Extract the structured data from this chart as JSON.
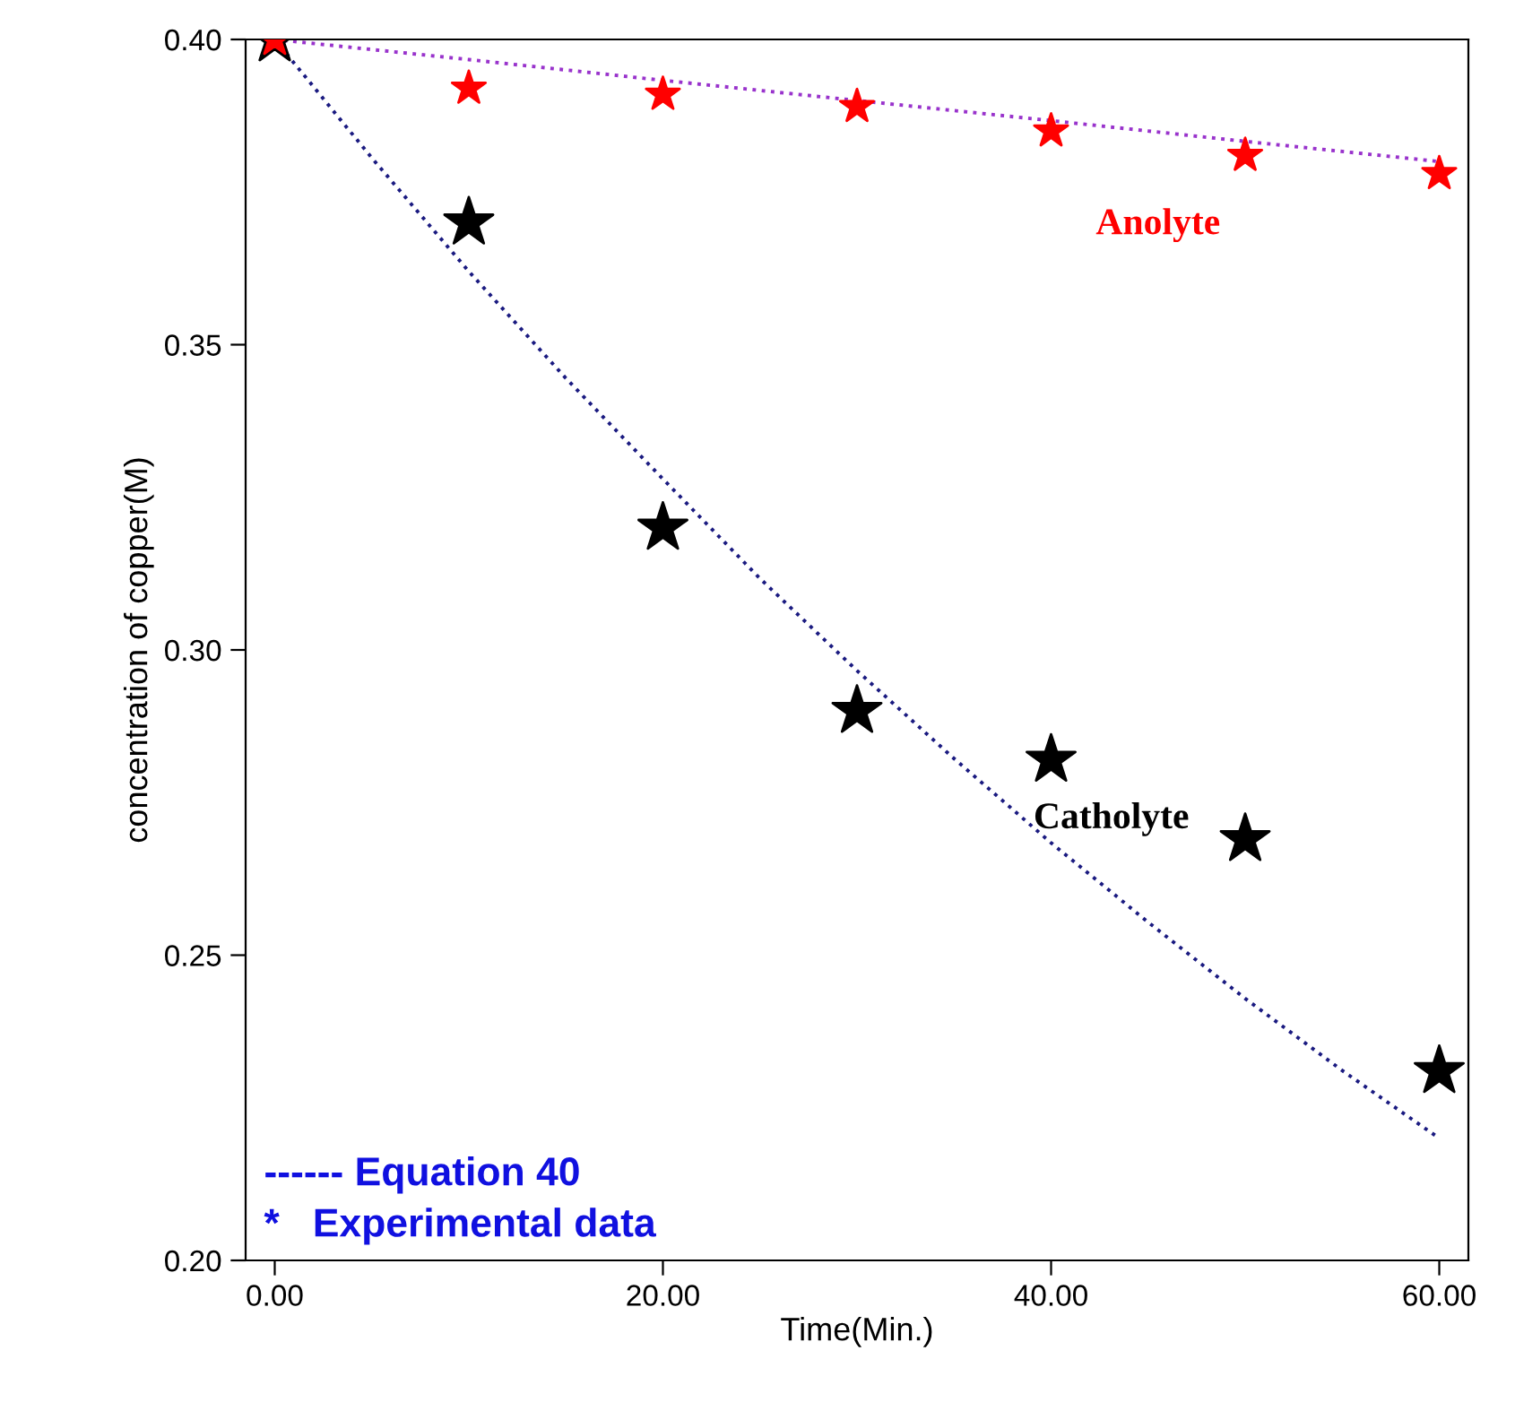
{
  "chart_data": {
    "type": "scatter",
    "xlabel": "Time(Min.)",
    "ylabel": "concentration of copper(M)",
    "x": [
      0,
      10,
      20,
      30,
      40,
      50,
      60
    ],
    "series": [
      {
        "type": "line",
        "color": "#9933cc",
        "line_style": "dotted",
        "marker": "none",
        "x": [
          0,
          10,
          20,
          30,
          40,
          50,
          60
        ],
        "values": [
          0.4,
          0.3967,
          0.3933,
          0.39,
          0.3867,
          0.3833,
          0.38
        ]
      },
      {
        "type": "line",
        "color": "#1a1a80",
        "line_style": "dotted",
        "marker": "none",
        "x": [
          0,
          5,
          10,
          15,
          20,
          25,
          30,
          35,
          40,
          45,
          50,
          55,
          60
        ],
        "values": [
          0.4,
          0.3806,
          0.362,
          0.3445,
          0.328,
          0.3117,
          0.2966,
          0.2822,
          0.2684,
          0.2554,
          0.2429,
          0.2311,
          0.22
        ]
      },
      {
        "name": "Catholyte",
        "color": "#000000",
        "marker": "star",
        "values": [
          0.4,
          0.37,
          0.32,
          0.29,
          0.282,
          0.269,
          0.231
        ]
      },
      {
        "name": "Anolyte",
        "color": "#ff0000",
        "marker": "star",
        "values": [
          0.4,
          0.392,
          0.391,
          0.389,
          0.385,
          0.381,
          0.378
        ]
      }
    ],
    "xlim": [
      -1.5,
      61.5
    ],
    "ylim": [
      0.2,
      0.4
    ],
    "xticks": [
      {
        "value": 0,
        "label": "0.00"
      },
      {
        "value": 20,
        "label": "20.00"
      },
      {
        "value": 40,
        "label": "40.00"
      },
      {
        "value": 60,
        "label": "60.00"
      }
    ],
    "yticks": [
      {
        "value": 0.2,
        "label": "0.20"
      },
      {
        "value": 0.25,
        "label": "0.25"
      },
      {
        "value": 0.3,
        "label": "0.30"
      },
      {
        "value": 0.35,
        "label": "0.35"
      },
      {
        "value": 0.4,
        "label": "0.40"
      }
    ],
    "grid": false,
    "legend": false,
    "annotations": [
      "------ Equation 40",
      "*   Experimental data"
    ]
  }
}
